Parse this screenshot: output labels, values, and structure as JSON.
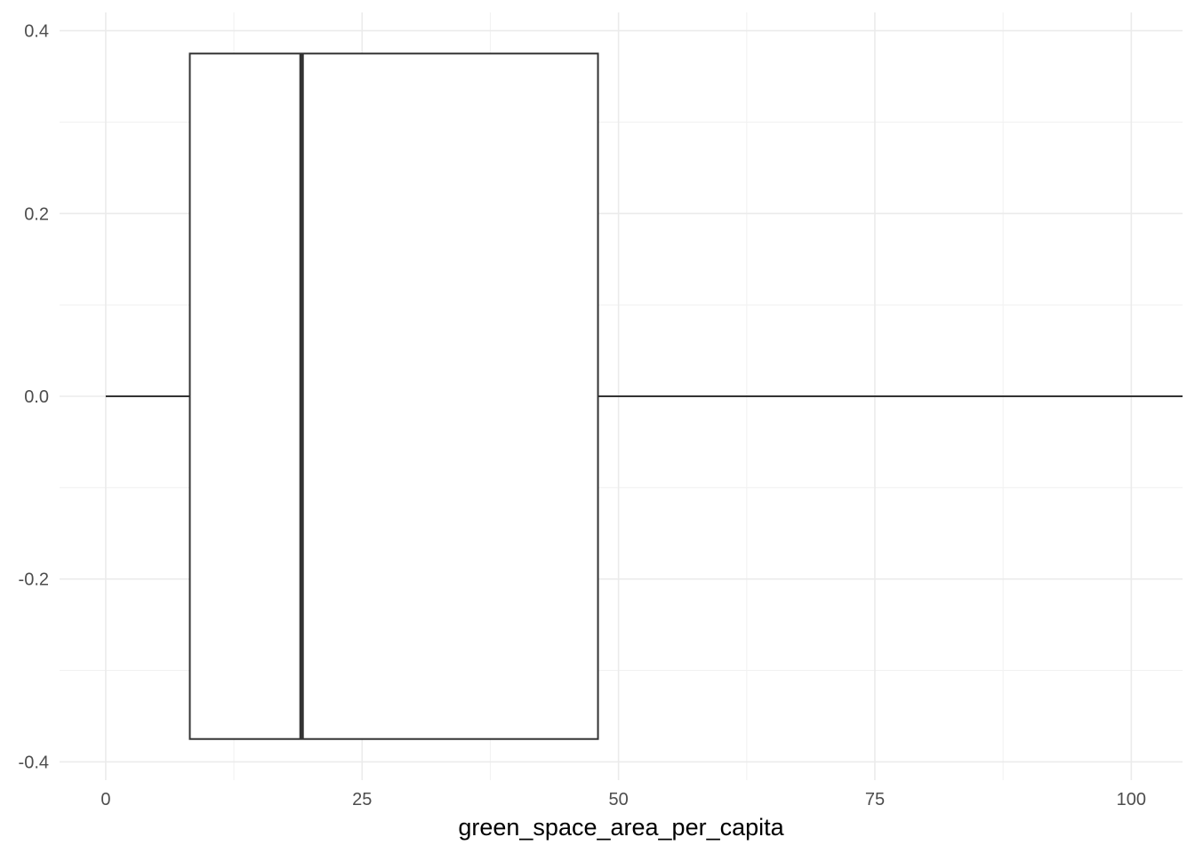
{
  "chart_data": {
    "type": "boxplot",
    "xlabel": "green_space_area_per_capita",
    "ylabel": "",
    "xlim": [
      -4.5,
      105
    ],
    "ylim": [
      -0.42,
      0.42
    ],
    "x_ticks": [
      0,
      25,
      50,
      75,
      100
    ],
    "x_tick_labels": [
      "0",
      "25",
      "50",
      "75",
      "100"
    ],
    "y_ticks": [
      -0.4,
      -0.2,
      0.0,
      0.2,
      0.4
    ],
    "y_tick_labels": [
      "-0.4",
      "-0.2",
      "0.0",
      "0.2",
      "0.4"
    ],
    "grid": true,
    "box": {
      "min": 0,
      "q1": 8.2,
      "median": 19.1,
      "q3": 48,
      "max": 105,
      "ymin": -0.375,
      "ymax": 0.375
    },
    "colors": {
      "box_fill": "#ffffff",
      "box_line": "#333333",
      "grid": "#ebebeb",
      "tick_text": "#4d4d4d"
    }
  }
}
